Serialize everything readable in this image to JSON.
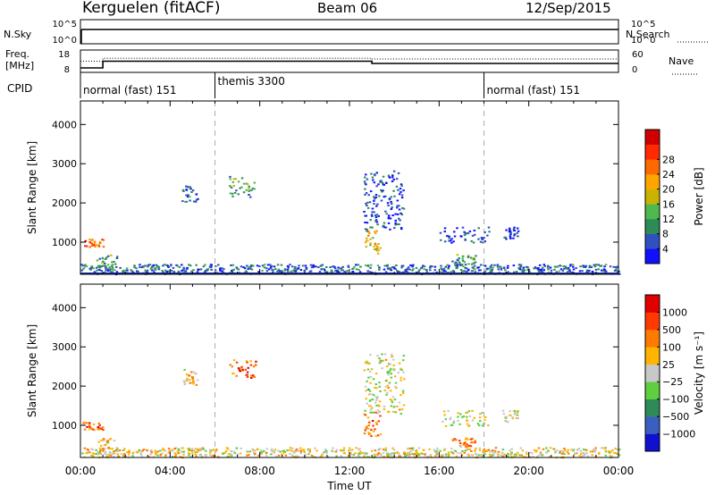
{
  "header": {
    "title": "Kerguelen (fitACF)",
    "beam": "Beam 06",
    "date": "12/Sep/2015"
  },
  "top_panels": {
    "nsky_label": "N.Sky",
    "nsearch_label": "N.Search",
    "nsky_ticks": [
      "10^5",
      "10^0"
    ],
    "nsky_ticks_right": [
      "10^5",
      "10^0"
    ],
    "freq_label": [
      "Freq.",
      "[MHz]"
    ],
    "freq_ticks": [
      "18",
      "8"
    ],
    "nave_label": "Nave",
    "nave_ticks": [
      "60",
      "0"
    ],
    "cpid_label": "CPID",
    "cpid_segments": [
      {
        "label": "normal (fast) 151",
        "start_hour": 0,
        "end_hour": 6
      },
      {
        "label": "themis 3300",
        "start_hour": 6,
        "end_hour": 18
      },
      {
        "label": "normal (fast) 151",
        "start_hour": 18,
        "end_hour": 24
      }
    ],
    "freq_steps": [
      {
        "start_hour": 0,
        "end_hour": 1,
        "mhz": 10
      },
      {
        "start_hour": 1,
        "end_hour": 13,
        "mhz": 13
      },
      {
        "start_hour": 13,
        "end_hour": 24,
        "mhz": 12
      }
    ],
    "nave_steps": [
      {
        "start_hour": 0,
        "end_hour": 1,
        "value": 30
      },
      {
        "start_hour": 1,
        "end_hour": 13,
        "value": 38
      },
      {
        "start_hour": 13,
        "end_hour": 24,
        "value": 36
      }
    ]
  },
  "chart_data": [
    {
      "type": "heatmap",
      "name": "power",
      "ylabel": "Slant Range [km]",
      "y_ticks": [
        "1000",
        "2000",
        "3000",
        "4000"
      ],
      "ylim": [
        180,
        4600
      ],
      "xlim": [
        0,
        24
      ],
      "colorbar_label": "Power [dB]",
      "colorbar_ticks": [
        "4",
        "8",
        "12",
        "16",
        "20",
        "24",
        "28"
      ],
      "colorbar_colors": [
        "#1010ff",
        "#3050c0",
        "#2e8b57",
        "#4fb84f",
        "#c8b400",
        "#ffa500",
        "#ff6a00",
        "#ff2a00",
        "#d00000"
      ],
      "clusters": [
        {
          "t0": 0.0,
          "t1": 1.0,
          "r0": 900,
          "r1": 1100,
          "level": 0.75
        },
        {
          "t0": 0.0,
          "t1": 24.0,
          "r0": 200,
          "r1": 450,
          "level": 0.2
        },
        {
          "t0": 0.7,
          "t1": 1.6,
          "r0": 300,
          "r1": 700,
          "level": 0.3
        },
        {
          "t0": 4.5,
          "t1": 5.2,
          "r0": 2050,
          "r1": 2450,
          "level": 0.2
        },
        {
          "t0": 6.6,
          "t1": 7.8,
          "r0": 2150,
          "r1": 2700,
          "level": 0.35
        },
        {
          "t0": 12.6,
          "t1": 14.4,
          "r0": 1300,
          "r1": 2850,
          "level": 0.15
        },
        {
          "t0": 12.6,
          "t1": 13.4,
          "r0": 700,
          "r1": 1400,
          "level": 0.55
        },
        {
          "t0": 16.0,
          "t1": 18.2,
          "r0": 1000,
          "r1": 1400,
          "level": 0.12
        },
        {
          "t0": 16.5,
          "t1": 17.6,
          "r0": 450,
          "r1": 700,
          "level": 0.3
        },
        {
          "t0": 18.8,
          "t1": 19.5,
          "r0": 1100,
          "r1": 1400,
          "level": 0.12
        }
      ],
      "color_mode": "power"
    },
    {
      "type": "heatmap",
      "name": "velocity",
      "ylabel": "Slant Range [km]",
      "y_ticks": [
        "1000",
        "2000",
        "3000",
        "4000"
      ],
      "ylim": [
        180,
        4600
      ],
      "xlim": [
        0,
        24
      ],
      "x_ticks": [
        "00:00",
        "04:00",
        "08:00",
        "12:00",
        "16:00",
        "20:00",
        "00:00"
      ],
      "xlabel": "Time UT",
      "colorbar_label": "Velocity [m s⁻¹]",
      "colorbar_ticks": [
        "1000",
        "500",
        "100",
        "25",
        "−25",
        "−100",
        "−500",
        "−1000"
      ],
      "colorbar_colors": [
        "#1010d0",
        "#3a5fc0",
        "#2e8b57",
        "#5fcf3f",
        "#c8c8c8",
        "#ffb400",
        "#ff7a00",
        "#ff3a00",
        "#e00000"
      ],
      "clusters": [
        {
          "t0": 0.0,
          "t1": 1.0,
          "r0": 900,
          "r1": 1100,
          "level": 0.75
        },
        {
          "t0": 0.0,
          "t1": 24.0,
          "r0": 200,
          "r1": 450,
          "level": 0.55
        },
        {
          "t0": 0.7,
          "t1": 1.6,
          "r0": 300,
          "r1": 700,
          "level": 0.6
        },
        {
          "t0": 4.5,
          "t1": 5.2,
          "r0": 2050,
          "r1": 2450,
          "level": 0.6
        },
        {
          "t0": 6.6,
          "t1": 7.8,
          "r0": 2150,
          "r1": 2700,
          "level": 0.78
        },
        {
          "t0": 12.6,
          "t1": 14.4,
          "r0": 1300,
          "r1": 2850,
          "level": 0.5
        },
        {
          "t0": 12.6,
          "t1": 13.4,
          "r0": 700,
          "r1": 1400,
          "level": 0.75
        },
        {
          "t0": 16.0,
          "t1": 18.2,
          "r0": 1000,
          "r1": 1400,
          "level": 0.5
        },
        {
          "t0": 16.5,
          "t1": 17.6,
          "r0": 450,
          "r1": 700,
          "level": 0.7
        },
        {
          "t0": 18.8,
          "t1": 19.5,
          "r0": 1100,
          "r1": 1400,
          "level": 0.5
        }
      ],
      "color_mode": "velocity"
    }
  ]
}
